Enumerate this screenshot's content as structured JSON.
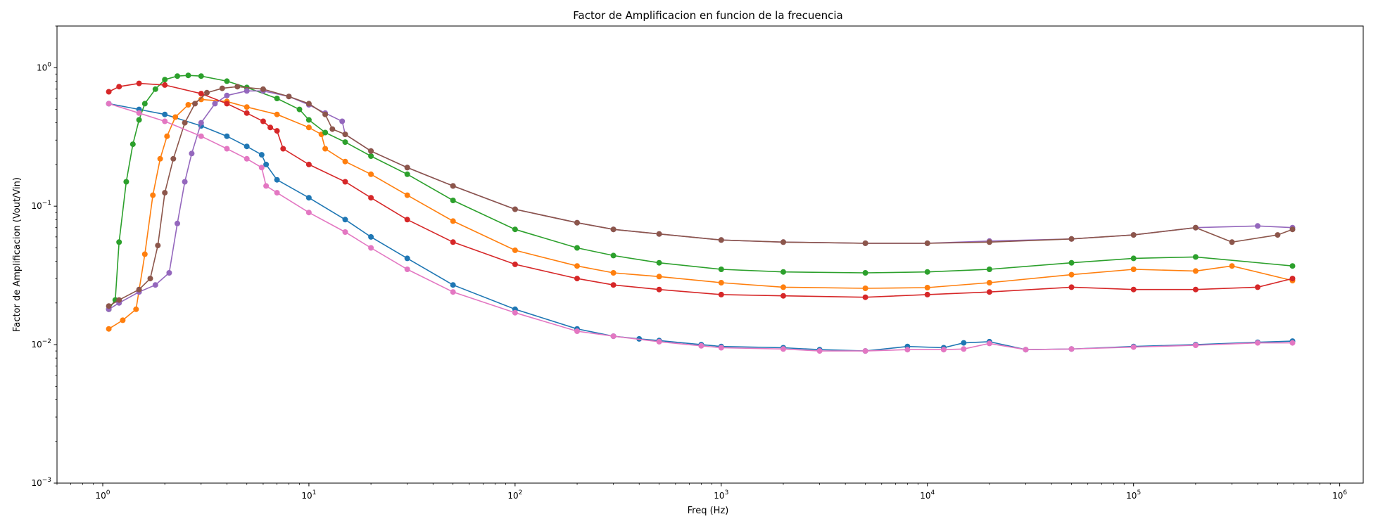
{
  "chart_data": {
    "type": "line",
    "title": "Factor de Amplificacion en funcion de la frecuencia",
    "xlabel": "Freq (Hz)",
    "ylabel": "Factor de Amplificacion (Vout/Vin)",
    "xscale": "log",
    "yscale": "log",
    "xlim": [
      0.6,
      1300000
    ],
    "ylim": [
      0.001,
      2
    ],
    "grid": false,
    "legend": "none",
    "x_ticks": [
      {
        "value": 1,
        "base": "10",
        "exp": "0"
      },
      {
        "value": 10,
        "base": "10",
        "exp": "1"
      },
      {
        "value": 100,
        "base": "10",
        "exp": "2"
      },
      {
        "value": 1000,
        "base": "10",
        "exp": "3"
      },
      {
        "value": 10000,
        "base": "10",
        "exp": "4"
      },
      {
        "value": 100000,
        "base": "10",
        "exp": "5"
      },
      {
        "value": 1000000,
        "base": "10",
        "exp": "6"
      }
    ],
    "y_ticks": [
      {
        "value": 0.001,
        "base": "10",
        "exp": "−3"
      },
      {
        "value": 0.01,
        "base": "10",
        "exp": "−2"
      },
      {
        "value": 0.1,
        "base": "10",
        "exp": "−1"
      },
      {
        "value": 1,
        "base": "10",
        "exp": "0"
      }
    ],
    "series": [
      {
        "color": "#1f77b4",
        "x": [
          1.07,
          1.5,
          2,
          3,
          4,
          5,
          5.9,
          6.2,
          7,
          10,
          15,
          20,
          30,
          50,
          100,
          200,
          300,
          400,
          500,
          800,
          1000,
          2000,
          3000,
          5000,
          8000,
          12000,
          15000,
          20000,
          30000,
          50000,
          100000,
          200000,
          400000,
          590000
        ],
        "y": [
          0.55,
          0.5,
          0.46,
          0.38,
          0.32,
          0.27,
          0.235,
          0.2,
          0.155,
          0.115,
          0.08,
          0.06,
          0.042,
          0.027,
          0.018,
          0.013,
          0.0115,
          0.011,
          0.0107,
          0.01,
          0.0097,
          0.0095,
          0.0092,
          0.009,
          0.0097,
          0.0095,
          0.0103,
          0.0105,
          0.0092,
          0.0093,
          0.0097,
          0.01,
          0.0104,
          0.0106
        ]
      },
      {
        "color": "#ff7f0e",
        "x": [
          1.07,
          1.25,
          1.45,
          1.6,
          1.75,
          1.9,
          2.05,
          2.25,
          2.6,
          3,
          4,
          5,
          7,
          10,
          11.5,
          12,
          15,
          20,
          30,
          50,
          100,
          200,
          300,
          500,
          1000,
          2000,
          5000,
          10000,
          20000,
          50000,
          100000,
          200000,
          300000,
          590000
        ],
        "y": [
          0.013,
          0.015,
          0.018,
          0.045,
          0.12,
          0.22,
          0.32,
          0.44,
          0.54,
          0.59,
          0.57,
          0.52,
          0.46,
          0.37,
          0.33,
          0.26,
          0.21,
          0.17,
          0.12,
          0.078,
          0.048,
          0.037,
          0.033,
          0.031,
          0.028,
          0.026,
          0.0255,
          0.0258,
          0.028,
          0.032,
          0.035,
          0.034,
          0.037,
          0.029
        ]
      },
      {
        "color": "#2ca02c",
        "x": [
          1.07,
          1.15,
          1.2,
          1.3,
          1.4,
          1.5,
          1.6,
          1.8,
          2,
          2.3,
          2.6,
          3,
          4,
          5,
          7,
          9,
          10,
          12,
          15,
          20,
          30,
          50,
          100,
          200,
          300,
          500,
          1000,
          2000,
          5000,
          10000,
          20000,
          50000,
          100000,
          200000,
          590000
        ],
        "y": [
          0.018,
          0.021,
          0.055,
          0.15,
          0.28,
          0.42,
          0.55,
          0.7,
          0.82,
          0.87,
          0.88,
          0.87,
          0.8,
          0.72,
          0.6,
          0.5,
          0.42,
          0.34,
          0.29,
          0.23,
          0.17,
          0.11,
          0.068,
          0.05,
          0.044,
          0.039,
          0.035,
          0.0335,
          0.033,
          0.0335,
          0.035,
          0.039,
          0.042,
          0.043,
          0.037
        ]
      },
      {
        "color": "#d62728",
        "x": [
          1.07,
          1.2,
          1.5,
          2,
          3,
          4,
          5,
          6,
          6.5,
          7,
          7.5,
          10,
          15,
          20,
          30,
          50,
          100,
          200,
          300,
          500,
          1000,
          2000,
          5000,
          10000,
          20000,
          50000,
          100000,
          200000,
          400000,
          590000
        ],
        "y": [
          0.67,
          0.73,
          0.77,
          0.75,
          0.65,
          0.55,
          0.47,
          0.41,
          0.37,
          0.35,
          0.26,
          0.2,
          0.15,
          0.115,
          0.08,
          0.055,
          0.038,
          0.03,
          0.027,
          0.025,
          0.023,
          0.0225,
          0.022,
          0.023,
          0.024,
          0.026,
          0.025,
          0.025,
          0.026,
          0.03
        ]
      },
      {
        "color": "#9467bd",
        "x": [
          1.07,
          1.2,
          1.5,
          1.8,
          2.1,
          2.3,
          2.5,
          2.7,
          3,
          3.5,
          4,
          5,
          6,
          8,
          10,
          12,
          14.5,
          15,
          20,
          30,
          50,
          100,
          200,
          300,
          500,
          1000,
          2000,
          5000,
          10000,
          20000,
          50000,
          100000,
          200000,
          400000,
          590000
        ],
        "y": [
          0.018,
          0.02,
          0.024,
          0.027,
          0.033,
          0.075,
          0.15,
          0.24,
          0.4,
          0.55,
          0.63,
          0.68,
          0.68,
          0.62,
          0.54,
          0.47,
          0.41,
          0.33,
          0.25,
          0.19,
          0.14,
          0.095,
          0.076,
          0.068,
          0.063,
          0.057,
          0.055,
          0.054,
          0.054,
          0.056,
          0.058,
          0.062,
          0.07,
          0.072,
          0.07
        ]
      },
      {
        "color": "#8c564b",
        "x": [
          1.07,
          1.2,
          1.5,
          1.7,
          1.85,
          2,
          2.2,
          2.5,
          2.8,
          3.2,
          3.8,
          4.5,
          6,
          8,
          10,
          12,
          13,
          15,
          20,
          30,
          50,
          100,
          200,
          300,
          500,
          1000,
          2000,
          5000,
          10000,
          20000,
          50000,
          100000,
          200000,
          300000,
          500000,
          590000
        ],
        "y": [
          0.019,
          0.021,
          0.025,
          0.03,
          0.052,
          0.125,
          0.22,
          0.4,
          0.55,
          0.66,
          0.71,
          0.73,
          0.7,
          0.62,
          0.55,
          0.46,
          0.36,
          0.33,
          0.25,
          0.19,
          0.14,
          0.095,
          0.076,
          0.068,
          0.063,
          0.057,
          0.055,
          0.054,
          0.054,
          0.055,
          0.058,
          0.062,
          0.07,
          0.055,
          0.062,
          0.068
        ]
      },
      {
        "color": "#e377c2",
        "x": [
          1.07,
          1.5,
          2,
          3,
          4,
          5,
          5.9,
          6.2,
          7,
          10,
          15,
          20,
          30,
          50,
          100,
          200,
          300,
          500,
          800,
          1000,
          2000,
          3000,
          5000,
          8000,
          12000,
          15000,
          20000,
          30000,
          50000,
          100000,
          200000,
          400000,
          590000
        ],
        "y": [
          0.55,
          0.47,
          0.41,
          0.32,
          0.26,
          0.22,
          0.19,
          0.14,
          0.125,
          0.09,
          0.065,
          0.05,
          0.035,
          0.024,
          0.017,
          0.0125,
          0.0115,
          0.0105,
          0.0098,
          0.0095,
          0.0093,
          0.009,
          0.009,
          0.0092,
          0.0092,
          0.0093,
          0.0102,
          0.0092,
          0.0093,
          0.0096,
          0.0099,
          0.0103,
          0.0103
        ]
      }
    ]
  }
}
